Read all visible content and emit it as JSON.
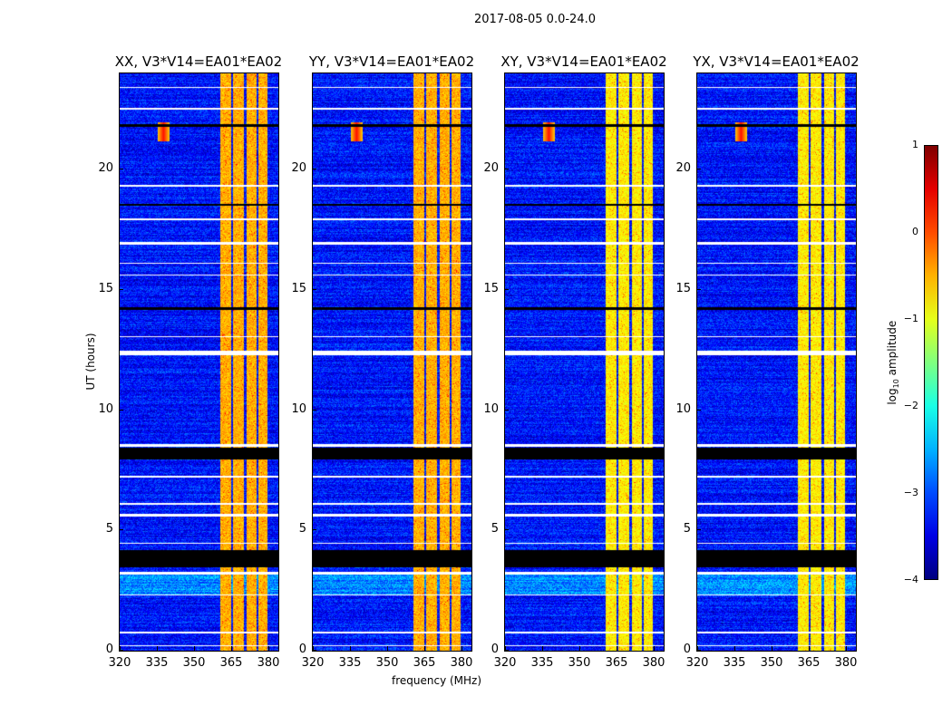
{
  "chart_data": {
    "type": "heatmap",
    "title": "2017-08-05 0.0-24.0",
    "xlabel": "frequency (MHz)",
    "ylabel": "UT (hours)",
    "xlim": [
      320,
      384
    ],
    "ylim": [
      0,
      24
    ],
    "xticks": [
      320,
      335,
      350,
      365,
      380
    ],
    "yticks": [
      0,
      5,
      10,
      15,
      20
    ],
    "colorbar": {
      "label": "log10 amplitude",
      "label_main": "log",
      "label_sub": "10",
      "label_rest": " amplitude",
      "range": [
        -4,
        1
      ],
      "ticks": [
        "1",
        "0",
        "−1",
        "−2",
        "−3",
        "−4"
      ],
      "tick_values": [
        1,
        0,
        -1,
        -2,
        -3,
        -4
      ],
      "colormap": "jet"
    },
    "panels": [
      {
        "title": "XX, V3*V14=EA01*EA02",
        "bright": [
          -0.6,
          -0.3
        ]
      },
      {
        "title": "YY, V3*V14=EA01*EA02",
        "bright": [
          -0.6,
          -0.2
        ]
      },
      {
        "title": "XY, V3*V14=EA01*EA02",
        "bright": [
          -0.9,
          -0.6
        ]
      },
      {
        "title": "YX, V3*V14=EA01*EA02",
        "bright": [
          -0.9,
          -0.6
        ]
      }
    ],
    "background_level": -3.3,
    "bands_mhz": [
      [
        360.4,
        364.8
      ],
      [
        365.5,
        369.8
      ],
      [
        371.0,
        375.0
      ],
      [
        375.6,
        379.6
      ]
    ],
    "rfi": {
      "freq_mhz": [
        335,
        340
      ],
      "time_h": [
        21.2,
        22.0
      ],
      "level": 0.3
    },
    "flagged_black_h": [
      [
        3.5,
        4.2
      ],
      [
        7.95,
        8.45
      ],
      [
        14.2,
        14.3
      ],
      [
        18.5,
        18.6
      ],
      [
        21.8,
        21.9
      ]
    ],
    "flagged_white_h": [
      [
        0.2,
        0.25
      ],
      [
        0.75,
        0.8
      ],
      [
        2.3,
        2.35
      ],
      [
        3.2,
        3.3
      ],
      [
        4.45,
        4.5
      ],
      [
        5.6,
        5.7
      ],
      [
        6.1,
        6.15
      ],
      [
        7.2,
        7.3
      ],
      [
        8.5,
        8.6
      ],
      [
        12.3,
        12.5
      ],
      [
        13.05,
        13.1
      ],
      [
        15.6,
        15.65
      ],
      [
        16.1,
        16.15
      ],
      [
        16.9,
        17.0
      ],
      [
        17.9,
        18.0
      ],
      [
        19.3,
        19.4
      ],
      [
        22.5,
        22.6
      ],
      [
        23.4,
        23.45
      ]
    ]
  }
}
